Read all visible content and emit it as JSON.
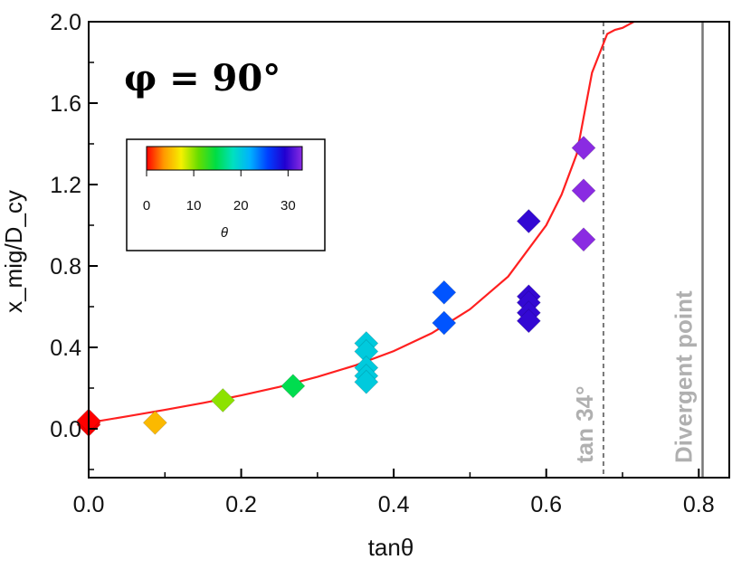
{
  "chart_data": {
    "type": "scatter",
    "title": "φ = 90°",
    "xlabel": "tanθ",
    "ylabel": "x_mig/D_cy",
    "xlim": [
      0.0,
      0.84
    ],
    "ylim": [
      -0.24,
      2.0
    ],
    "xticks": [
      "0.0",
      "0.2",
      "0.4",
      "0.6",
      "0.8"
    ],
    "yticks": [
      "0.0",
      "0.4",
      "0.8",
      "1.2",
      "1.6",
      "2.0"
    ],
    "points": [
      {
        "x": 0.0,
        "y": 0.02,
        "theta": 0
      },
      {
        "x": 0.0,
        "y": 0.03,
        "theta": 0
      },
      {
        "x": 0.0,
        "y": 0.04,
        "theta": 0
      },
      {
        "x": 0.087,
        "y": 0.03,
        "theta": 5
      },
      {
        "x": 0.176,
        "y": 0.14,
        "theta": 10
      },
      {
        "x": 0.268,
        "y": 0.21,
        "theta": 15
      },
      {
        "x": 0.364,
        "y": 0.42,
        "theta": 20
      },
      {
        "x": 0.364,
        "y": 0.38,
        "theta": 20
      },
      {
        "x": 0.364,
        "y": 0.3,
        "theta": 20
      },
      {
        "x": 0.364,
        "y": 0.26,
        "theta": 20
      },
      {
        "x": 0.364,
        "y": 0.23,
        "theta": 20
      },
      {
        "x": 0.466,
        "y": 0.67,
        "theta": 25
      },
      {
        "x": 0.466,
        "y": 0.52,
        "theta": 25
      },
      {
        "x": 0.577,
        "y": 1.02,
        "theta": 30
      },
      {
        "x": 0.577,
        "y": 0.65,
        "theta": 30
      },
      {
        "x": 0.577,
        "y": 0.62,
        "theta": 30
      },
      {
        "x": 0.577,
        "y": 0.57,
        "theta": 30
      },
      {
        "x": 0.577,
        "y": 0.53,
        "theta": 30
      },
      {
        "x": 0.649,
        "y": 1.38,
        "theta": 33
      },
      {
        "x": 0.649,
        "y": 1.17,
        "theta": 33
      },
      {
        "x": 0.649,
        "y": 0.93,
        "theta": 33
      }
    ],
    "fit_curve": {
      "color": "#ff2020",
      "x": [
        0.0,
        0.05,
        0.1,
        0.15,
        0.2,
        0.25,
        0.3,
        0.35,
        0.4,
        0.45,
        0.5,
        0.55,
        0.6,
        0.62,
        0.64,
        0.66,
        0.68,
        0.69,
        0.7,
        0.71,
        0.715
      ],
      "y": [
        0.03,
        0.061,
        0.093,
        0.127,
        0.164,
        0.206,
        0.255,
        0.312,
        0.382,
        0.47,
        0.587,
        0.748,
        1.0,
        1.15,
        1.35,
        1.75,
        1.94,
        1.96,
        1.97,
        1.99,
        2.0
      ]
    },
    "vlines": [
      {
        "x": 0.675,
        "style": "dashed",
        "label": "tan 34°"
      },
      {
        "x": 0.805,
        "style": "solid",
        "label": "Divergent point"
      }
    ],
    "colorbar": {
      "label": "θ",
      "range": [
        0,
        33
      ],
      "ticks": [
        "0",
        "10",
        "20",
        "30"
      ],
      "colors": [
        "#ff0000",
        "#ff9900",
        "#f5f000",
        "#66dd00",
        "#00dd44",
        "#00e0c0",
        "#00b0ff",
        "#0040ff",
        "#2000d0",
        "#8a2be2"
      ]
    }
  }
}
